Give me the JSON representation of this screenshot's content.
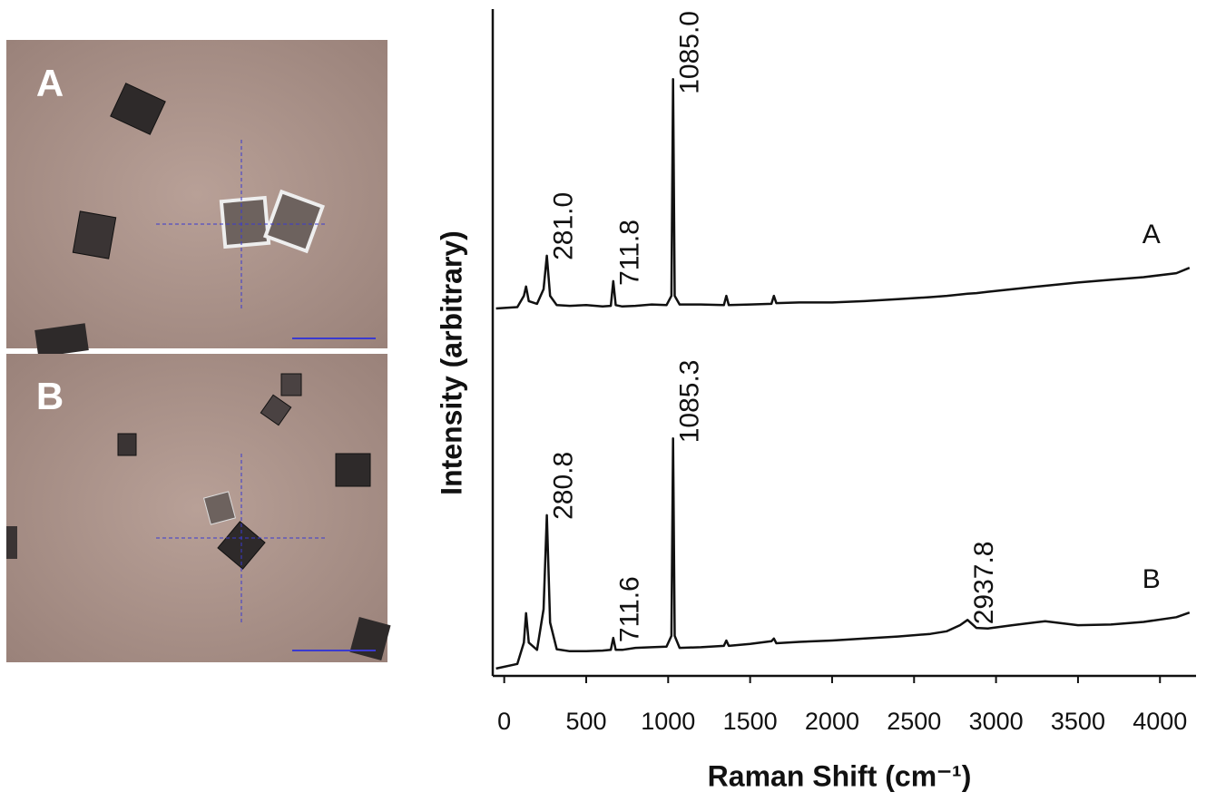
{
  "images": [
    {
      "label": "A"
    },
    {
      "label": "B"
    }
  ],
  "chart_data": {
    "type": "line",
    "xlabel": "Raman Shift (cm⁻¹)",
    "ylabel": "Intensity (arbitrary)",
    "xlim": [
      -70,
      4220
    ],
    "ylim": [
      0,
      100
    ],
    "xticks": [
      0,
      500,
      1000,
      1500,
      2000,
      2500,
      3000,
      3500,
      4000
    ],
    "x": [
      -50,
      80,
      120,
      133,
      150,
      200,
      240,
      260,
      280,
      320,
      400,
      500,
      600,
      650,
      665,
      680,
      720,
      800,
      900,
      990,
      1020,
      1030,
      1040,
      1070,
      1200,
      1340,
      1355,
      1370,
      1500,
      1630,
      1645,
      1660,
      1800,
      2000,
      2200,
      2400,
      2600,
      2700,
      2780,
      2826,
      2880,
      2950,
      3100,
      3300,
      3500,
      3700,
      3900,
      4100,
      4180
    ],
    "series": [
      {
        "name": "A",
        "color": "#111111",
        "values": [
          55.1,
          55.3,
          57.0,
          58.4,
          56.2,
          55.8,
          58,
          63.0,
          57,
          55.6,
          55.5,
          55.6,
          55.4,
          55.5,
          59.2,
          55.6,
          55.4,
          55.5,
          55.7,
          55.6,
          57,
          89.5,
          57,
          55.7,
          55.7,
          55.6,
          57.0,
          55.6,
          55.7,
          55.8,
          57,
          55.9,
          56.0,
          56.0,
          56.2,
          56.5,
          56.8,
          57.0,
          57.2,
          57.3,
          57.4,
          57.6,
          58.0,
          58.5,
          59.0,
          59.4,
          59.8,
          60.4,
          61.2
        ]
      },
      {
        "name": "B",
        "color": "#111111",
        "values": [
          1.1,
          1.8,
          5,
          9.4,
          5,
          3.9,
          10,
          24.1,
          8,
          4.0,
          3.7,
          3.7,
          3.8,
          3.9,
          5.7,
          3.9,
          3.9,
          4.2,
          4.3,
          4.4,
          6,
          35.6,
          6,
          4.2,
          4.3,
          4.5,
          5.3,
          4.5,
          4.8,
          5.2,
          5.6,
          4.9,
          5.1,
          5.3,
          5.6,
          5.9,
          6.3,
          6.7,
          7.6,
          8.4,
          7.2,
          7.1,
          7.6,
          8.2,
          7.6,
          7.7,
          8.1,
          8.8,
          9.5
        ]
      }
    ],
    "annotations": [
      {
        "text": "281.0",
        "x": 260,
        "y": 63.0
      },
      {
        "text": "711.8",
        "x": 665,
        "y": 59.2
      },
      {
        "text": "1085.0",
        "x": 1030,
        "y": 89.5
      },
      {
        "text": "280.8",
        "x": 260,
        "y": 24.1
      },
      {
        "text": "711.6",
        "x": 665,
        "y": 5.7
      },
      {
        "text": "1085.3",
        "x": 1030,
        "y": 35.6
      },
      {
        "text": "2937.8",
        "x": 2826,
        "y": 8.4
      }
    ]
  }
}
